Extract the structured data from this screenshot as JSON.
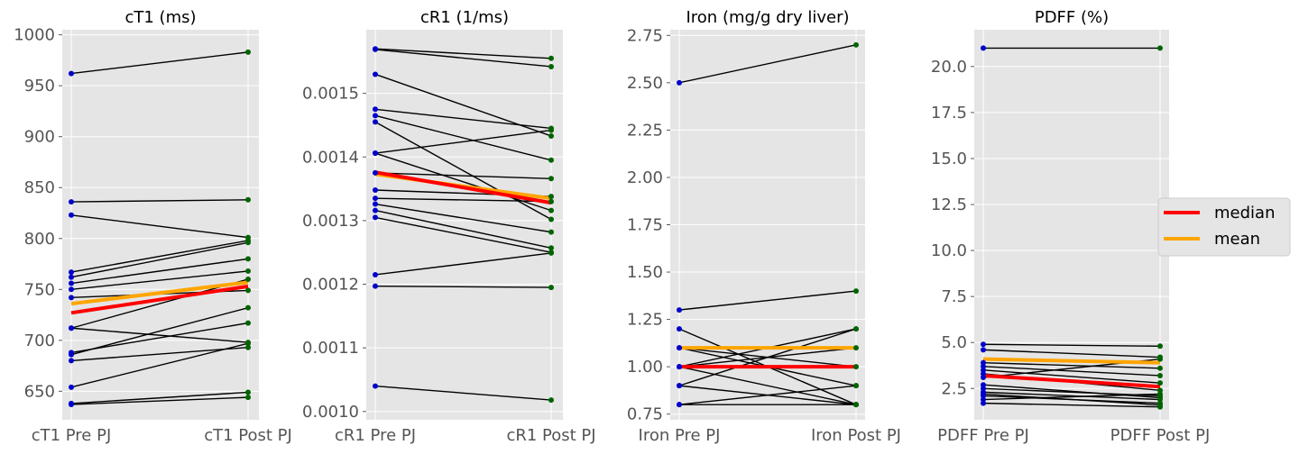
{
  "chart_data": [
    {
      "type": "line",
      "title": "cT1 (ms)",
      "categories": [
        "cT1 Pre PJ",
        "cT1 Post PJ"
      ],
      "yticks": [
        "650",
        "700",
        "750",
        "800",
        "850",
        "900",
        "950",
        "1000"
      ],
      "ylim": [
        622,
        1005
      ],
      "pairs": [
        [
          962,
          983
        ],
        [
          836,
          838
        ],
        [
          823,
          801
        ],
        [
          767,
          798
        ],
        [
          762,
          796
        ],
        [
          756,
          780
        ],
        [
          750,
          768
        ],
        [
          742,
          749
        ],
        [
          712,
          760
        ],
        [
          712,
          698
        ],
        [
          688,
          717
        ],
        [
          686,
          732
        ],
        [
          680,
          693
        ],
        [
          654,
          697
        ],
        [
          638,
          649
        ],
        [
          637,
          644
        ]
      ],
      "median": [
        727,
        753
      ],
      "mean": [
        736,
        757
      ]
    },
    {
      "type": "line",
      "title": "cR1 (1/ms)",
      "categories": [
        "cR1 Pre PJ",
        "cR1 Post PJ"
      ],
      "yticks": [
        "0.0010",
        "0.0011",
        "0.0012",
        "0.0013",
        "0.0014",
        "0.0015"
      ],
      "ylim": [
        0.000987,
        0.0016
      ],
      "pairs": [
        [
          0.00157,
          0.001555
        ],
        [
          0.001569,
          0.001542
        ],
        [
          0.00153,
          0.001433
        ],
        [
          0.001475,
          0.001445
        ],
        [
          0.001465,
          0.001395
        ],
        [
          0.001455,
          0.001302
        ],
        [
          0.001406,
          0.001442
        ],
        [
          0.001406,
          0.001316
        ],
        [
          0.001375,
          0.001366
        ],
        [
          0.001348,
          0.001338
        ],
        [
          0.001335,
          0.00133
        ],
        [
          0.001326,
          0.001282
        ],
        [
          0.001316,
          0.001257
        ],
        [
          0.001305,
          0.00125
        ],
        [
          0.001215,
          0.001249
        ],
        [
          0.001197,
          0.001195
        ],
        [
          0.00104,
          0.001018
        ]
      ],
      "median": [
        0.001376,
        0.001328
      ],
      "mean": [
        0.001373,
        0.001335
      ]
    },
    {
      "type": "line",
      "title": "Iron (mg/g dry liver)",
      "categories": [
        "Iron Pre PJ",
        "Iron Post PJ"
      ],
      "yticks": [
        "0.75",
        "1.00",
        "1.25",
        "1.50",
        "1.75",
        "2.00",
        "2.25",
        "2.50",
        "2.75"
      ],
      "ylim": [
        0.72,
        2.78
      ],
      "pairs": [
        [
          2.5,
          2.7
        ],
        [
          1.3,
          1.4
        ],
        [
          1.2,
          0.8
        ],
        [
          1.1,
          1.0
        ],
        [
          1.1,
          0.9
        ],
        [
          1.0,
          1.2
        ],
        [
          1.0,
          1.1
        ],
        [
          1.0,
          0.8
        ],
        [
          0.9,
          1.2
        ],
        [
          0.9,
          0.8
        ],
        [
          0.8,
          0.9
        ],
        [
          0.8,
          0.8
        ]
      ],
      "median": [
        1.0,
        1.0
      ],
      "mean": [
        1.1,
        1.1
      ]
    },
    {
      "type": "line",
      "title": "PDFF (%)",
      "categories": [
        "PDFF Pre PJ",
        "PDFF Post PJ"
      ],
      "yticks": [
        "2.5",
        "5.0",
        "7.5",
        "10.0",
        "12.5",
        "15.0",
        "17.5",
        "20.0"
      ],
      "ylim": [
        0.8,
        22.0
      ],
      "pairs": [
        [
          21.0,
          21.0
        ],
        [
          4.9,
          4.8
        ],
        [
          4.6,
          4.2
        ],
        [
          3.9,
          3.6
        ],
        [
          3.7,
          3.2
        ],
        [
          3.5,
          2.8
        ],
        [
          3.3,
          2.4
        ],
        [
          3.1,
          4.1
        ],
        [
          2.7,
          2.0
        ],
        [
          2.5,
          2.1
        ],
        [
          2.3,
          1.9
        ],
        [
          2.1,
          1.7
        ],
        [
          1.9,
          2.2
        ],
        [
          1.7,
          1.5
        ],
        [
          2.2,
          1.6
        ]
      ],
      "median": [
        3.2,
        2.6
      ],
      "mean": [
        4.1,
        3.9
      ]
    }
  ],
  "legend": {
    "placement": "center-right",
    "entries": [
      {
        "label": "median",
        "color": "#ff0000"
      },
      {
        "label": "mean",
        "color": "#ffa500"
      }
    ]
  },
  "colors": {
    "pre_point": "#0000cc",
    "post_point": "#006400",
    "pair_line": "#000000",
    "median": "#ff0000",
    "mean": "#ffa500",
    "panel_bg": "#e5e5e5",
    "grid": "#ffffff"
  }
}
